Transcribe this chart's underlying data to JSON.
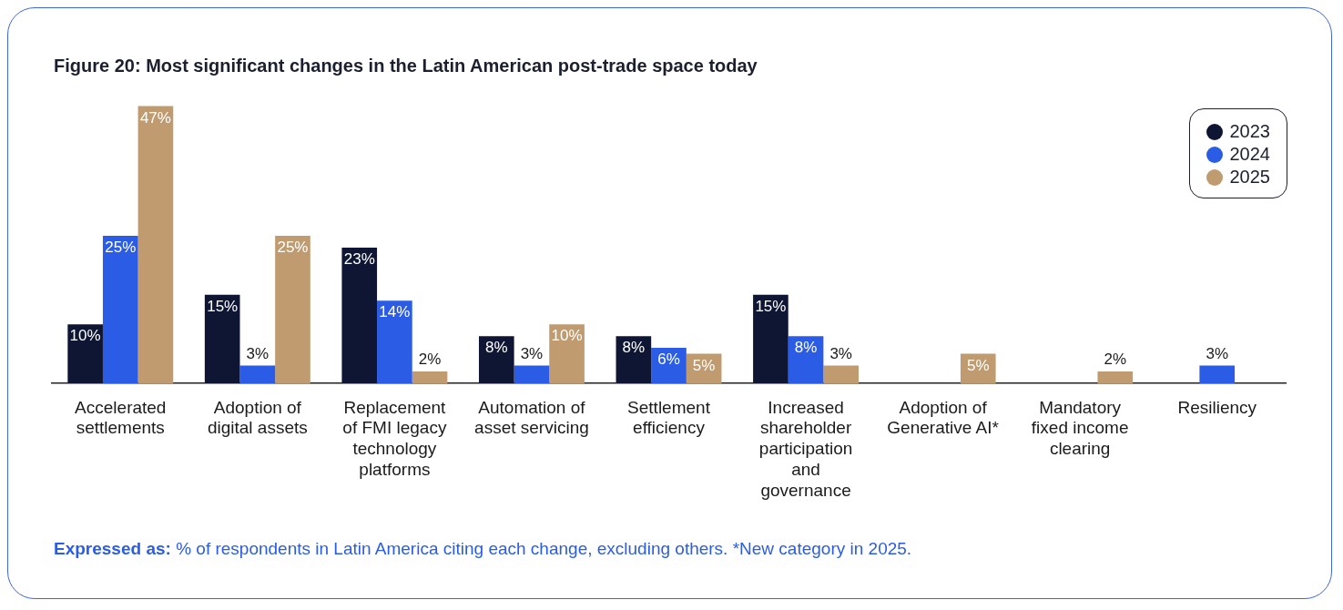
{
  "chart_data": {
    "type": "bar",
    "title": "Figure 20: Most significant changes in the Latin American post-trade space today",
    "categories": [
      "Accelerated settlements",
      "Adoption of digital assets",
      "Replacement of FMI legacy technology platforms",
      "Automation of asset servicing",
      "Settlement efficiency",
      "Increased shareholder participation and governance",
      "Adoption of Generative AI*",
      "Mandatory fixed income clearing",
      "Resiliency"
    ],
    "series": [
      {
        "name": "2023",
        "color": "#0f1633",
        "values": [
          10,
          15,
          23,
          8,
          8,
          15,
          null,
          null,
          null
        ],
        "value_labels": [
          "10%",
          "15%",
          "23%",
          "8%",
          "8%",
          "15%",
          null,
          null,
          null
        ]
      },
      {
        "name": "2024",
        "color": "#2b5ce6",
        "values": [
          25,
          3,
          14,
          3,
          6,
          8,
          null,
          null,
          3
        ],
        "value_labels": [
          "25%",
          "3%",
          "14%",
          "3%",
          "6%",
          "8%",
          null,
          null,
          "3%"
        ]
      },
      {
        "name": "2025",
        "color": "#bf9b6f",
        "values": [
          47,
          25,
          2,
          10,
          5,
          3,
          5,
          2,
          null
        ],
        "value_labels": [
          "47%",
          "25%",
          "2%",
          "10%",
          "5%",
          "3%",
          "5%",
          "2%",
          null
        ]
      }
    ],
    "legend": "top right",
    "grid": false,
    "tick_labels": "x",
    "annotations": [
      "Expressed as:",
      "% of respondents in Latin America citing each change, excluding others. *New category in 2025."
    ]
  }
}
